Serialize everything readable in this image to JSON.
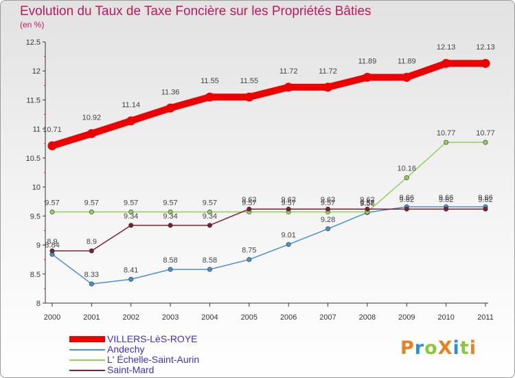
{
  "header": {
    "title": "Evolution du Taux de Taxe Foncière sur les Propriétés Bâties",
    "unit": "(en %)"
  },
  "logo": {
    "text": "ProXiti",
    "letters": [
      {
        "ch": "P",
        "color": "#e8821e"
      },
      {
        "ch": "r",
        "color": "#2a8fd6"
      },
      {
        "ch": "o",
        "color": "#8cc63f"
      },
      {
        "ch": "X",
        "color": "#e8821e"
      },
      {
        "ch": "i",
        "color": "#2a8fd6"
      },
      {
        "ch": "t",
        "color": "#8cc63f"
      },
      {
        "ch": "i",
        "color": "#e8821e"
      }
    ]
  },
  "chart_data": {
    "type": "line",
    "title": "Evolution du Taux de Taxe Foncière sur les Propriétés Bâties",
    "ylabel": "(en %)",
    "xlabel": "",
    "ylim": [
      8,
      12.5
    ],
    "yticks": [
      "8",
      "8.5",
      "9",
      "9.5",
      "10",
      "10.5",
      "11",
      "11.5",
      "12",
      "12.5"
    ],
    "categories": [
      "2000",
      "2001",
      "2002",
      "2003",
      "2004",
      "2005",
      "2006",
      "2007",
      "2008",
      "2009",
      "2010",
      "2011"
    ],
    "legend_position": "bottom-left",
    "grid": false,
    "series": [
      {
        "name": "VILLERS-LèS-ROYE",
        "color": "#ee0000",
        "bold": true,
        "values": [
          10.71,
          10.92,
          11.14,
          11.36,
          11.55,
          11.55,
          11.72,
          11.72,
          11.89,
          11.89,
          12.13,
          12.13
        ],
        "labels": [
          "10.71",
          "10.92",
          "11.14",
          "11.36",
          "11.55",
          "11.55",
          "11.72",
          "11.72",
          "11.89",
          "11.89",
          "12.13",
          "12.13"
        ]
      },
      {
        "name": "Andechy",
        "color": "#4a90d0",
        "bold": false,
        "values": [
          8.84,
          8.33,
          8.41,
          8.58,
          8.58,
          8.75,
          9.01,
          9.28,
          9.56,
          9.66,
          9.66,
          9.66
        ],
        "labels": [
          "8.84",
          "8.33",
          "8.41",
          "8.58",
          "8.58",
          "8.75",
          "9.01",
          "9.28",
          "9.56",
          "9.66",
          "9.66",
          "9.66"
        ]
      },
      {
        "name": "L' Échelle-Saint-Aurin",
        "color": "#8fd058",
        "bold": false,
        "values": [
          9.57,
          9.57,
          9.57,
          9.57,
          9.57,
          9.57,
          9.57,
          9.57,
          9.57,
          10.16,
          10.77,
          10.77
        ],
        "labels": [
          "9.57",
          "9.57",
          "9.57",
          "9.57",
          "9.57",
          "9.57",
          "9.57",
          "9.57",
          "9.57",
          "10.16",
          "10.77",
          "10.77"
        ]
      },
      {
        "name": "Saint-Mard",
        "color": "#7a2030",
        "bold": false,
        "values": [
          8.9,
          8.9,
          9.34,
          9.34,
          9.34,
          9.62,
          9.62,
          9.62,
          9.62,
          9.62,
          9.62,
          9.62
        ],
        "labels": [
          "8.9",
          "8.9",
          "9.34",
          "9.34",
          "9.34",
          "9.62",
          "9.62",
          "9.62",
          "9.62",
          "9.62",
          "9.62",
          "9.62"
        ]
      }
    ]
  }
}
